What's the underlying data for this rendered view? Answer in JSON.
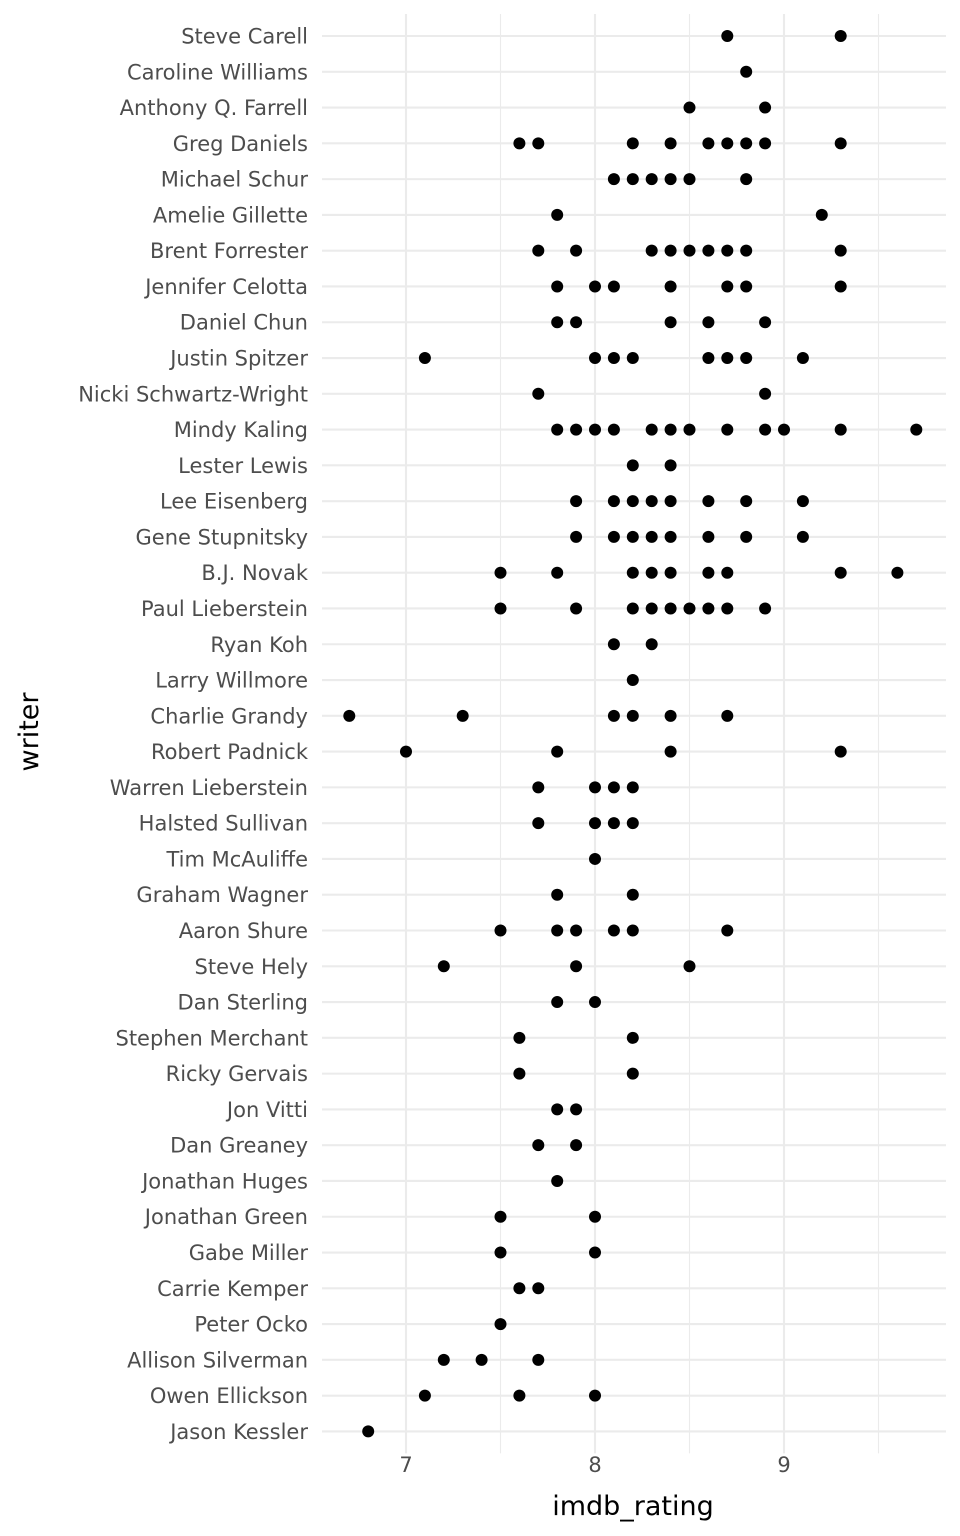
{
  "chart_data": {
    "type": "scatter",
    "xlabel": "imdb_rating",
    "ylabel": "writer",
    "xlim": [
      6.6,
      9.85
    ],
    "x_ticks": [
      "7",
      "8",
      "9"
    ],
    "x_tick_values": [
      7,
      8,
      9
    ],
    "grid": true,
    "point_color": "#000000",
    "categories": [
      "Steve Carell",
      "Caroline Williams",
      "Anthony Q. Farrell",
      "Greg Daniels",
      "Michael Schur",
      "Amelie Gillette",
      "Brent Forrester",
      "Jennifer Celotta",
      "Daniel Chun",
      "Justin Spitzer",
      "Nicki Schwartz-Wright",
      "Mindy Kaling",
      "Lester Lewis",
      "Lee Eisenberg",
      "Gene Stupnitsky",
      "B.J. Novak",
      "Paul Lieberstein",
      "Ryan Koh",
      "Larry Willmore",
      "Charlie Grandy",
      "Robert Padnick",
      "Warren Lieberstein",
      "Halsted Sullivan",
      "Tim McAuliffe",
      "Graham Wagner",
      "Aaron Shure",
      "Steve Hely",
      "Dan Sterling",
      "Stephen Merchant",
      "Ricky Gervais",
      "Jon Vitti",
      "Dan Greaney",
      "Jonathan Huges",
      "Jonathan Green",
      "Gabe Miller",
      "Carrie Kemper",
      "Peter Ocko",
      "Allison Silverman",
      "Owen Ellickson",
      "Jason Kessler"
    ],
    "points": [
      [
        "Steve Carell",
        8.7
      ],
      [
        "Steve Carell",
        9.3
      ],
      [
        "Caroline Williams",
        8.8
      ],
      [
        "Anthony Q. Farrell",
        8.5
      ],
      [
        "Anthony Q. Farrell",
        8.9
      ],
      [
        "Greg Daniels",
        7.6
      ],
      [
        "Greg Daniels",
        7.7
      ],
      [
        "Greg Daniels",
        8.2
      ],
      [
        "Greg Daniels",
        8.4
      ],
      [
        "Greg Daniels",
        8.6
      ],
      [
        "Greg Daniels",
        8.7
      ],
      [
        "Greg Daniels",
        8.8
      ],
      [
        "Greg Daniels",
        8.9
      ],
      [
        "Greg Daniels",
        9.3
      ],
      [
        "Michael Schur",
        8.1
      ],
      [
        "Michael Schur",
        8.2
      ],
      [
        "Michael Schur",
        8.3
      ],
      [
        "Michael Schur",
        8.4
      ],
      [
        "Michael Schur",
        8.5
      ],
      [
        "Michael Schur",
        8.8
      ],
      [
        "Amelie Gillette",
        7.8
      ],
      [
        "Amelie Gillette",
        9.2
      ],
      [
        "Brent Forrester",
        7.7
      ],
      [
        "Brent Forrester",
        7.9
      ],
      [
        "Brent Forrester",
        8.3
      ],
      [
        "Brent Forrester",
        8.4
      ],
      [
        "Brent Forrester",
        8.5
      ],
      [
        "Brent Forrester",
        8.6
      ],
      [
        "Brent Forrester",
        8.7
      ],
      [
        "Brent Forrester",
        8.8
      ],
      [
        "Brent Forrester",
        9.3
      ],
      [
        "Jennifer Celotta",
        7.8
      ],
      [
        "Jennifer Celotta",
        8.0
      ],
      [
        "Jennifer Celotta",
        8.1
      ],
      [
        "Jennifer Celotta",
        8.4
      ],
      [
        "Jennifer Celotta",
        8.7
      ],
      [
        "Jennifer Celotta",
        8.8
      ],
      [
        "Jennifer Celotta",
        9.3
      ],
      [
        "Daniel Chun",
        7.8
      ],
      [
        "Daniel Chun",
        7.9
      ],
      [
        "Daniel Chun",
        8.4
      ],
      [
        "Daniel Chun",
        8.6
      ],
      [
        "Daniel Chun",
        8.9
      ],
      [
        "Justin Spitzer",
        7.1
      ],
      [
        "Justin Spitzer",
        8.0
      ],
      [
        "Justin Spitzer",
        8.1
      ],
      [
        "Justin Spitzer",
        8.2
      ],
      [
        "Justin Spitzer",
        8.6
      ],
      [
        "Justin Spitzer",
        8.7
      ],
      [
        "Justin Spitzer",
        8.8
      ],
      [
        "Justin Spitzer",
        9.1
      ],
      [
        "Nicki Schwartz-Wright",
        7.7
      ],
      [
        "Nicki Schwartz-Wright",
        8.9
      ],
      [
        "Mindy Kaling",
        7.8
      ],
      [
        "Mindy Kaling",
        7.9
      ],
      [
        "Mindy Kaling",
        8.0
      ],
      [
        "Mindy Kaling",
        8.1
      ],
      [
        "Mindy Kaling",
        8.3
      ],
      [
        "Mindy Kaling",
        8.4
      ],
      [
        "Mindy Kaling",
        8.5
      ],
      [
        "Mindy Kaling",
        8.7
      ],
      [
        "Mindy Kaling",
        8.9
      ],
      [
        "Mindy Kaling",
        9.0
      ],
      [
        "Mindy Kaling",
        9.3
      ],
      [
        "Mindy Kaling",
        9.7
      ],
      [
        "Lester Lewis",
        8.2
      ],
      [
        "Lester Lewis",
        8.4
      ],
      [
        "Lee Eisenberg",
        7.9
      ],
      [
        "Lee Eisenberg",
        8.1
      ],
      [
        "Lee Eisenberg",
        8.2
      ],
      [
        "Lee Eisenberg",
        8.3
      ],
      [
        "Lee Eisenberg",
        8.4
      ],
      [
        "Lee Eisenberg",
        8.6
      ],
      [
        "Lee Eisenberg",
        8.8
      ],
      [
        "Lee Eisenberg",
        9.1
      ],
      [
        "Gene Stupnitsky",
        7.9
      ],
      [
        "Gene Stupnitsky",
        8.1
      ],
      [
        "Gene Stupnitsky",
        8.2
      ],
      [
        "Gene Stupnitsky",
        8.3
      ],
      [
        "Gene Stupnitsky",
        8.4
      ],
      [
        "Gene Stupnitsky",
        8.6
      ],
      [
        "Gene Stupnitsky",
        8.8
      ],
      [
        "Gene Stupnitsky",
        9.1
      ],
      [
        "B.J. Novak",
        7.5
      ],
      [
        "B.J. Novak",
        7.8
      ],
      [
        "B.J. Novak",
        8.2
      ],
      [
        "B.J. Novak",
        8.3
      ],
      [
        "B.J. Novak",
        8.4
      ],
      [
        "B.J. Novak",
        8.6
      ],
      [
        "B.J. Novak",
        8.7
      ],
      [
        "B.J. Novak",
        9.3
      ],
      [
        "B.J. Novak",
        9.6
      ],
      [
        "Paul Lieberstein",
        7.5
      ],
      [
        "Paul Lieberstein",
        7.9
      ],
      [
        "Paul Lieberstein",
        8.2
      ],
      [
        "Paul Lieberstein",
        8.3
      ],
      [
        "Paul Lieberstein",
        8.4
      ],
      [
        "Paul Lieberstein",
        8.5
      ],
      [
        "Paul Lieberstein",
        8.6
      ],
      [
        "Paul Lieberstein",
        8.7
      ],
      [
        "Paul Lieberstein",
        8.9
      ],
      [
        "Ryan Koh",
        8.1
      ],
      [
        "Ryan Koh",
        8.3
      ],
      [
        "Larry Willmore",
        8.2
      ],
      [
        "Charlie Grandy",
        6.7
      ],
      [
        "Charlie Grandy",
        7.3
      ],
      [
        "Charlie Grandy",
        8.1
      ],
      [
        "Charlie Grandy",
        8.2
      ],
      [
        "Charlie Grandy",
        8.4
      ],
      [
        "Charlie Grandy",
        8.7
      ],
      [
        "Robert Padnick",
        7.0
      ],
      [
        "Robert Padnick",
        7.8
      ],
      [
        "Robert Padnick",
        8.4
      ],
      [
        "Robert Padnick",
        9.3
      ],
      [
        "Warren Lieberstein",
        7.7
      ],
      [
        "Warren Lieberstein",
        8.0
      ],
      [
        "Warren Lieberstein",
        8.1
      ],
      [
        "Warren Lieberstein",
        8.2
      ],
      [
        "Halsted Sullivan",
        7.7
      ],
      [
        "Halsted Sullivan",
        8.0
      ],
      [
        "Halsted Sullivan",
        8.1
      ],
      [
        "Halsted Sullivan",
        8.2
      ],
      [
        "Tim McAuliffe",
        8.0
      ],
      [
        "Graham Wagner",
        7.8
      ],
      [
        "Graham Wagner",
        8.2
      ],
      [
        "Aaron Shure",
        7.5
      ],
      [
        "Aaron Shure",
        7.8
      ],
      [
        "Aaron Shure",
        7.9
      ],
      [
        "Aaron Shure",
        8.1
      ],
      [
        "Aaron Shure",
        8.2
      ],
      [
        "Aaron Shure",
        8.7
      ],
      [
        "Steve Hely",
        7.2
      ],
      [
        "Steve Hely",
        7.9
      ],
      [
        "Steve Hely",
        8.5
      ],
      [
        "Dan Sterling",
        7.8
      ],
      [
        "Dan Sterling",
        8.0
      ],
      [
        "Stephen Merchant",
        7.6
      ],
      [
        "Stephen Merchant",
        8.2
      ],
      [
        "Ricky Gervais",
        7.6
      ],
      [
        "Ricky Gervais",
        8.2
      ],
      [
        "Jon Vitti",
        7.8
      ],
      [
        "Jon Vitti",
        7.9
      ],
      [
        "Dan Greaney",
        7.7
      ],
      [
        "Dan Greaney",
        7.9
      ],
      [
        "Jonathan Huges",
        7.8
      ],
      [
        "Jonathan Green",
        7.5
      ],
      [
        "Jonathan Green",
        8.0
      ],
      [
        "Gabe Miller",
        7.5
      ],
      [
        "Gabe Miller",
        8.0
      ],
      [
        "Carrie Kemper",
        7.6
      ],
      [
        "Carrie Kemper",
        7.7
      ],
      [
        "Peter Ocko",
        7.5
      ],
      [
        "Allison Silverman",
        7.2
      ],
      [
        "Allison Silverman",
        7.4
      ],
      [
        "Allison Silverman",
        7.7
      ],
      [
        "Owen Ellickson",
        7.1
      ],
      [
        "Owen Ellickson",
        7.6
      ],
      [
        "Owen Ellickson",
        8.0
      ],
      [
        "Jason Kessler",
        6.8
      ]
    ]
  }
}
